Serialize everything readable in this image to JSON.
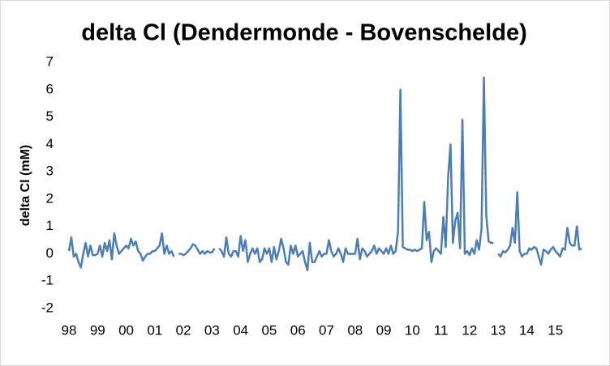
{
  "chart_data": {
    "type": "line",
    "title": "delta Cl (Dendermonde - Bovenschelde)",
    "y_label": "delta Cl (mM)",
    "categories": [
      "98",
      null,
      null,
      null,
      null,
      null,
      null,
      null,
      null,
      null,
      null,
      null,
      "99",
      null,
      null,
      null,
      null,
      null,
      null,
      null,
      null,
      null,
      null,
      null,
      "00",
      null,
      null,
      null,
      null,
      null,
      null,
      null,
      null,
      null,
      null,
      null,
      "01",
      null,
      null,
      null,
      null,
      null,
      null,
      null,
      null,
      null,
      null,
      null,
      "02",
      null,
      null,
      null,
      null,
      null,
      null,
      null,
      null,
      null,
      null,
      null,
      "03",
      null,
      null,
      null,
      null,
      null,
      null,
      null,
      null,
      null,
      null,
      null,
      "04",
      null,
      null,
      null,
      null,
      null,
      null,
      null,
      null,
      null,
      null,
      null,
      "05",
      null,
      null,
      null,
      null,
      null,
      null,
      null,
      null,
      null,
      null,
      null,
      "06",
      null,
      null,
      null,
      null,
      null,
      null,
      null,
      null,
      null,
      null,
      null,
      "07",
      null,
      null,
      null,
      null,
      null,
      null,
      null,
      null,
      null,
      null,
      null,
      "08",
      null,
      null,
      null,
      null,
      null,
      null,
      null,
      null,
      null,
      null,
      null,
      "09",
      null,
      null,
      null,
      null,
      null,
      null,
      null,
      null,
      null,
      null,
      null,
      "10",
      null,
      null,
      null,
      null,
      null,
      null,
      null,
      null,
      null,
      null,
      null,
      "11",
      null,
      null,
      null,
      null,
      null,
      null,
      null,
      null,
      null,
      null,
      null,
      "12",
      null,
      null,
      null,
      null,
      null,
      null,
      null,
      null,
      null,
      null,
      null,
      "13",
      null,
      null,
      null,
      null,
      null,
      null,
      null,
      null,
      null,
      null,
      null,
      "14",
      null,
      null,
      null,
      null,
      null,
      null,
      null,
      null,
      null,
      null,
      null,
      "15",
      null,
      null,
      null,
      null,
      null,
      null,
      null,
      null,
      null,
      null,
      null
    ],
    "series": [
      {
        "name": "delta Cl",
        "color": "#4a7ebb",
        "values": [
          0.1,
          0.6,
          -0.1,
          0.0,
          -0.3,
          -0.5,
          0.0,
          0.4,
          -0.1,
          0.3,
          -0.05,
          -0.05,
          0.0,
          0.3,
          -0.1,
          0.4,
          0.1,
          0.5,
          -0.2,
          0.75,
          0.3,
          0.0,
          0.1,
          0.2,
          0.3,
          0.2,
          0.55,
          0.3,
          0.45,
          0.1,
          0.0,
          -0.25,
          -0.1,
          0.0,
          0.0,
          0.1,
          0.1,
          0.2,
          0.3,
          0.75,
          0.0,
          0.3,
          0.0,
          0.1,
          -0.1,
          null,
          0.0,
          0.0,
          -0.05,
          0.0,
          0.1,
          0.2,
          0.35,
          0.3,
          0.15,
          0.0,
          0.1,
          0.0,
          0.1,
          0.05,
          0.05,
          0.2,
          null,
          0.2,
          0.1,
          -0.1,
          0.6,
          0.0,
          -0.1,
          0.1,
          0.1,
          -0.1,
          0.65,
          0.1,
          0.5,
          -0.3,
          0.0,
          0.2,
          0.0,
          0.2,
          -0.3,
          -0.2,
          0.2,
          0.0,
          0.2,
          -0.3,
          0.25,
          -0.2,
          0.1,
          0.55,
          0.2,
          -0.3,
          -0.4,
          0.3,
          0.0,
          0.3,
          -0.1,
          0.0,
          0.1,
          -0.3,
          -0.6,
          0.4,
          -0.3,
          -0.3,
          -0.1,
          0.1,
          -0.1,
          0.0,
          0.0,
          0.5,
          0.1,
          -0.1,
          0.0,
          0.2,
          0.0,
          -0.3,
          0.2,
          0.0,
          0.0,
          0.0,
          0.0,
          0.55,
          -0.2,
          0.2,
          0.1,
          -0.1,
          0.0,
          0.1,
          0.3,
          0.0,
          0.2,
          0.1,
          0.0,
          0.2,
          0.0,
          0.3,
          0.0,
          0.1,
          0.8,
          6.0,
          0.25,
          0.2,
          0.15,
          0.15,
          0.1,
          0.15,
          0.1,
          0.15,
          0.2,
          1.9,
          0.5,
          0.8,
          -0.3,
          0.1,
          0.2,
          0.1,
          0.0,
          1.35,
          0.25,
          2.8,
          4.0,
          0.4,
          1.2,
          1.5,
          0.2,
          4.9,
          0.0,
          0.1,
          -0.05,
          0.2,
          0.0,
          0.5,
          0.15,
          0.9,
          6.45,
          1.4,
          0.45,
          0.4,
          0.4,
          null,
          0.0,
          -0.1,
          0.1,
          0.05,
          0.15,
          0.3,
          0.95,
          0.4,
          2.25,
          0.1,
          -0.1,
          0.0,
          0.0,
          0.2,
          0.15,
          0.25,
          0.2,
          -0.1,
          -0.4,
          0.15,
          0.1,
          0.0,
          0.15,
          0.25,
          0.1,
          0.0,
          -0.1,
          0.2,
          0.15,
          0.95,
          0.4,
          0.3,
          0.3,
          1.0,
          0.15,
          0.2
        ]
      }
    ],
    "ylim": [
      -2,
      7
    ],
    "yticks": [
      -2,
      -1,
      0,
      1,
      2,
      3,
      4,
      5,
      6,
      7
    ],
    "grid": false
  }
}
